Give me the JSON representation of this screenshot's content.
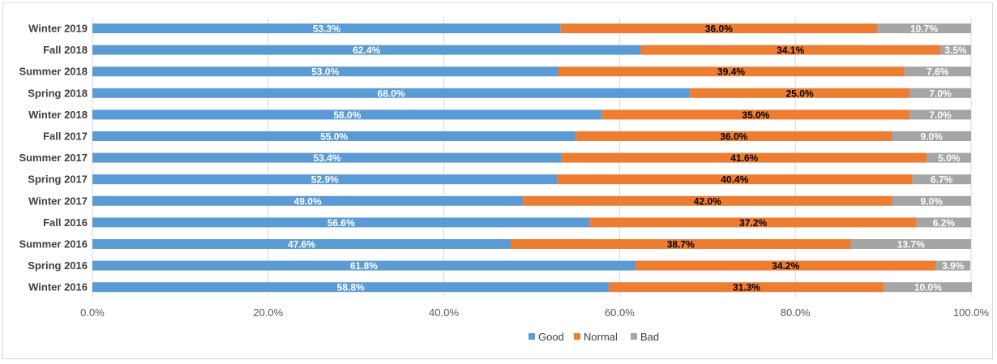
{
  "chart_data": {
    "type": "bar",
    "orientation": "horizontal",
    "stacked": "percent",
    "title": "",
    "xlabel": "",
    "ylabel": "",
    "xlim": [
      0,
      100
    ],
    "x_ticks": [
      "0.0%",
      "20.0%",
      "40.0%",
      "60.0%",
      "80.0%",
      "100.0%"
    ],
    "grid": true,
    "legend_position": "bottom",
    "categories": [
      "Winter 2019",
      "Fall 2018",
      "Summer 2018",
      "Spring 2018",
      "Winter 2018",
      "Fall 2017",
      "Summer 2017",
      "Spring 2017",
      "Winter 2017",
      "Fall 2016",
      "Summer 2016",
      "Spring 2016",
      "Winter 2016"
    ],
    "series": [
      {
        "name": "Good",
        "color": "#5b9bd5",
        "label_color": "#ffffff",
        "values": [
          53.3,
          62.4,
          53.0,
          68.0,
          58.0,
          55.0,
          53.4,
          52.9,
          49.0,
          56.6,
          47.6,
          61.8,
          58.8
        ],
        "labels": [
          "53.3%",
          "62.4%",
          "53.0%",
          "68.0%",
          "58.0%",
          "55.0%",
          "53.4%",
          "52.9%",
          "49.0%",
          "56.6%",
          "47.6%",
          "61.8%",
          "58.8%"
        ]
      },
      {
        "name": "Normal",
        "color": "#ed7d31",
        "label_color": "#000000",
        "values": [
          36.0,
          34.1,
          39.4,
          25.0,
          35.0,
          36.0,
          41.6,
          40.4,
          42.0,
          37.2,
          38.7,
          34.2,
          31.3
        ],
        "labels": [
          "36.0%",
          "34.1%",
          "39.4%",
          "25.0%",
          "35.0%",
          "36.0%",
          "41.6%",
          "40.4%",
          "42.0%",
          "37.2%",
          "38.7%",
          "34.2%",
          "31.3%"
        ]
      },
      {
        "name": "Bad",
        "color": "#a5a5a5",
        "label_color": "#ffffff",
        "values": [
          10.7,
          3.5,
          7.6,
          7.0,
          7.0,
          9.0,
          5.0,
          6.7,
          9.0,
          6.2,
          13.7,
          3.9,
          10.0
        ],
        "labels": [
          "10.7%",
          "3.5%",
          "7.6%",
          "7.0%",
          "7.0%",
          "9.0%",
          "5.0%",
          "6.7%",
          "9.0%",
          "6.2%",
          "13.7%",
          "3.9%",
          "10.0%"
        ]
      }
    ]
  }
}
